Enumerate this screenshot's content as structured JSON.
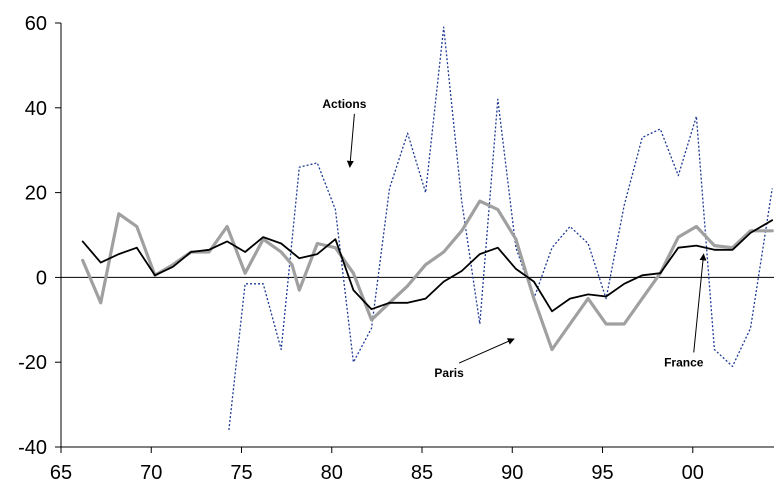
{
  "chart_data": {
    "type": "line",
    "xlim": [
      1965,
      2004.5
    ],
    "ylim": [
      -40,
      60
    ],
    "yticks": [
      -40,
      -20,
      0,
      20,
      40,
      60
    ],
    "xticks": [
      {
        "value": 1965,
        "label": "65"
      },
      {
        "value": 1970,
        "label": "70"
      },
      {
        "value": 1975,
        "label": "75"
      },
      {
        "value": 1980,
        "label": "80"
      },
      {
        "value": 1985,
        "label": "85"
      },
      {
        "value": 1990,
        "label": "90"
      },
      {
        "value": 1995,
        "label": "95"
      },
      {
        "value": 2000,
        "label": "00"
      }
    ],
    "grid": false,
    "zero_line": true,
    "series": [
      {
        "name": "Actions",
        "style": "dotted",
        "color": "#1f3a93",
        "x": [
          1974.3,
          1975.2,
          1976.2,
          1977.2,
          1978.2,
          1979.2,
          1980.2,
          1981.2,
          1982.2,
          1983.2,
          1984.2,
          1985.2,
          1986.2,
          1987.2,
          1988.2,
          1989.2,
          1990.2,
          1991.2,
          1992.2,
          1993.2,
          1994.2,
          1995.2,
          1996.2,
          1997.2,
          1998.2,
          1999.2,
          2000.2,
          2001.2,
          2002.2,
          2003.2,
          2004.4
        ],
        "values": [
          -36,
          -1.5,
          -1.5,
          -17,
          26,
          27,
          16,
          -20,
          -12,
          21,
          34,
          20,
          59,
          18,
          -11,
          42,
          7,
          -5,
          7,
          12,
          8,
          -5,
          17,
          33,
          35,
          24,
          38,
          -17,
          -21,
          -12,
          21
        ]
      },
      {
        "name": "Paris",
        "style": "solid",
        "color": "#a0a0a0",
        "x": [
          1966.2,
          1967.2,
          1968.2,
          1969.2,
          1970.2,
          1971.2,
          1972.2,
          1973.2,
          1974.2,
          1975.2,
          1976.2,
          1977.2,
          1977.8,
          1978.2,
          1979.2,
          1980.2,
          1981.2,
          1982.2,
          1983.2,
          1984.2,
          1985.2,
          1986.2,
          1987.2,
          1988.2,
          1989.2,
          1990.2,
          1991.2,
          1992.2,
          1993.2,
          1994.2,
          1995.2,
          1996.2,
          1997.2,
          1998.2,
          1999.2,
          2000.2,
          2001.2,
          2002.2,
          2003.2,
          2004.4
        ],
        "values": [
          4,
          -6,
          15,
          12,
          0.5,
          3,
          6,
          6,
          12,
          1,
          9,
          6,
          3,
          -3,
          8,
          7,
          1,
          -10,
          -6,
          -2,
          3,
          6,
          11,
          18,
          16,
          9,
          -5,
          -17,
          -11,
          -5,
          -11,
          -11,
          -5,
          1,
          9.5,
          12,
          7.5,
          7,
          11,
          11
        ]
      },
      {
        "name": "France",
        "style": "solid",
        "color": "#000000",
        "x": [
          1966.2,
          1967.2,
          1968.2,
          1969.2,
          1970.2,
          1971.2,
          1972.2,
          1973.2,
          1974.2,
          1975.2,
          1976.2,
          1977.2,
          1978.2,
          1979.2,
          1980.2,
          1981.2,
          1982.2,
          1983.2,
          1984.2,
          1985.2,
          1986.2,
          1987.2,
          1988.2,
          1989.2,
          1990.2,
          1991.2,
          1992.2,
          1993.2,
          1994.2,
          1995.2,
          1996.2,
          1997.2,
          1998.2,
          1999.2,
          2000.2,
          2001.2,
          2002.2,
          2003.2,
          2004.4
        ],
        "values": [
          8.5,
          3.5,
          5.5,
          7,
          0.5,
          2.5,
          6,
          6.5,
          8.5,
          6,
          9.5,
          8,
          4.5,
          5.5,
          9,
          -3,
          -7.5,
          -6,
          -6,
          -5,
          -1,
          1.5,
          5.5,
          7,
          2,
          -1,
          -8,
          -5,
          -4,
          -4.5,
          -1.5,
          0.5,
          1,
          7,
          7.5,
          6.5,
          6.5,
          10.5,
          13.5
        ]
      }
    ],
    "annotations": [
      {
        "text": "Actions",
        "label_pos": [
          1980.7,
          40
        ],
        "arrow_to": [
          1981,
          26
        ]
      },
      {
        "text": "Paris",
        "label_pos": [
          1986.5,
          -23.5
        ],
        "arrow_to": [
          1990.1,
          -14.5
        ]
      },
      {
        "text": "France",
        "label_pos": [
          1999.5,
          -21
        ],
        "arrow_to": [
          2000.6,
          5.5
        ]
      }
    ]
  }
}
